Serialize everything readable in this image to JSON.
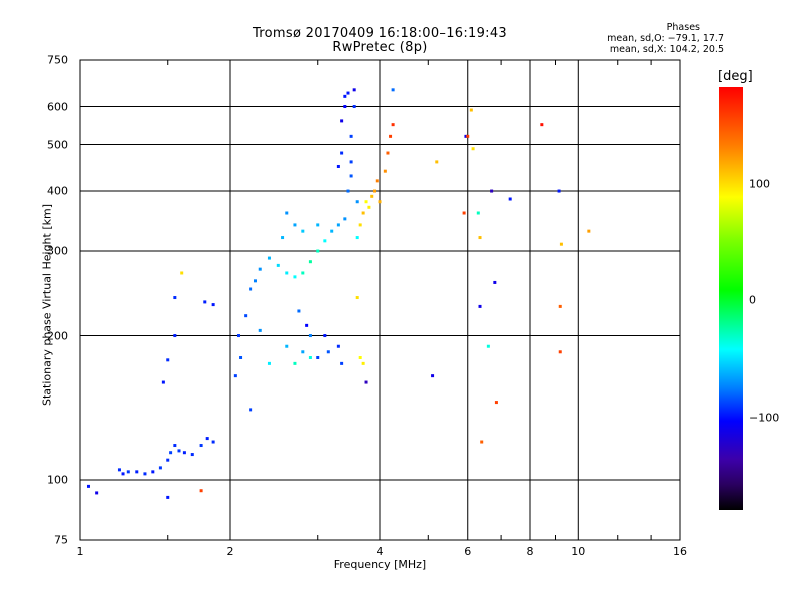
{
  "header": {
    "title_line1": "Tromsø 20170409 16:18:00–16:19:43",
    "title_line2": "RwPretec (8p)",
    "stats_title": "Phases",
    "stats_o": "mean, sd,O: −79.1, 17.7",
    "stats_x": "mean, sd,X: 104.2, 20.5"
  },
  "colorbar": {
    "unit": "[deg]",
    "ticks": [
      "100",
      "0",
      "−100"
    ],
    "range": [
      -180,
      180
    ]
  },
  "chart_data": {
    "type": "scatter",
    "title": "Tromsø 20170409 16:18:00–16:19:43",
    "subtitle": "RwPretec (8p)",
    "xlabel": "Frequency [MHz]",
    "ylabel": "Stationary phase Virtual Height [km]",
    "xscale": "log",
    "yscale": "log",
    "xlim": [
      1,
      16
    ],
    "ylim": [
      75,
      750
    ],
    "xticks": [
      "1",
      "2",
      "4",
      "6",
      "8",
      "10",
      "16"
    ],
    "yticks": [
      "75",
      "100",
      "200",
      "300",
      "400",
      "500",
      "600",
      "750"
    ],
    "grid": true,
    "color_variable": "phase (deg)",
    "series": [
      {
        "values": [
          [
            1.08,
            94,
            -110
          ],
          [
            1.04,
            97,
            -100
          ],
          [
            1.2,
            105,
            -95
          ],
          [
            1.22,
            103,
            -100
          ],
          [
            1.25,
            104,
            -92
          ],
          [
            1.3,
            104,
            -98
          ],
          [
            1.35,
            103,
            -95
          ],
          [
            1.4,
            104,
            -100
          ],
          [
            1.45,
            106,
            -92
          ],
          [
            1.5,
            110,
            -95
          ],
          [
            1.52,
            114,
            -90
          ],
          [
            1.55,
            118,
            -95
          ],
          [
            1.58,
            115,
            -92
          ],
          [
            1.62,
            114,
            -98
          ],
          [
            1.68,
            113,
            -95
          ],
          [
            1.75,
            118,
            -92
          ],
          [
            1.8,
            122,
            -98
          ],
          [
            1.85,
            120,
            -95
          ],
          [
            1.5,
            92,
            -100
          ],
          [
            1.75,
            95,
            160
          ],
          [
            1.47,
            160,
            -100
          ],
          [
            1.5,
            178,
            -95
          ],
          [
            1.55,
            200,
            -98
          ],
          [
            1.55,
            240,
            -95
          ],
          [
            1.6,
            270,
            110
          ],
          [
            1.78,
            235,
            -98
          ],
          [
            1.85,
            232,
            -100
          ],
          [
            2.05,
            165,
            -90
          ],
          [
            2.1,
            180,
            -85
          ],
          [
            2.08,
            200,
            -92
          ],
          [
            2.15,
            220,
            -88
          ],
          [
            2.2,
            140,
            -90
          ],
          [
            2.2,
            250,
            -80
          ],
          [
            2.25,
            260,
            -75
          ],
          [
            2.3,
            275,
            -70
          ],
          [
            2.4,
            290,
            -60
          ],
          [
            2.5,
            280,
            -50
          ],
          [
            2.6,
            270,
            -45
          ],
          [
            2.7,
            265,
            -40
          ],
          [
            2.8,
            270,
            -30
          ],
          [
            2.9,
            285,
            -25
          ],
          [
            3.0,
            300,
            -30
          ],
          [
            3.1,
            315,
            -40
          ],
          [
            3.2,
            330,
            -60
          ],
          [
            3.3,
            340,
            -65
          ],
          [
            3.4,
            350,
            -70
          ],
          [
            2.55,
            320,
            -60
          ],
          [
            2.6,
            360,
            -70
          ],
          [
            2.7,
            340,
            -65
          ],
          [
            2.8,
            330,
            -55
          ],
          [
            3.0,
            340,
            -60
          ],
          [
            2.6,
            190,
            -60
          ],
          [
            2.7,
            175,
            -30
          ],
          [
            2.8,
            185,
            -65
          ],
          [
            2.9,
            200,
            -75
          ],
          [
            3.0,
            180,
            -90
          ],
          [
            3.1,
            200,
            -100
          ],
          [
            3.15,
            185,
            -85
          ],
          [
            2.85,
            210,
            -105
          ],
          [
            2.75,
            225,
            -80
          ],
          [
            3.3,
            190,
            -95
          ],
          [
            3.35,
            175,
            -90
          ],
          [
            2.9,
            180,
            -35
          ],
          [
            2.3,
            205,
            -70
          ],
          [
            2.4,
            175,
            -45
          ],
          [
            3.3,
            450,
            -100
          ],
          [
            3.35,
            480,
            -95
          ],
          [
            3.35,
            560,
            -110
          ],
          [
            3.4,
            600,
            -105
          ],
          [
            3.45,
            640,
            -100
          ],
          [
            3.5,
            520,
            -90
          ],
          [
            3.5,
            430,
            -85
          ],
          [
            3.6,
            380,
            -70
          ],
          [
            3.6,
            320,
            -40
          ],
          [
            3.4,
            630,
            -100
          ],
          [
            3.55,
            650,
            -110
          ],
          [
            3.55,
            600,
            -95
          ],
          [
            3.5,
            460,
            -90
          ],
          [
            3.45,
            400,
            -80
          ],
          [
            3.65,
            340,
            110
          ],
          [
            3.7,
            360,
            120
          ],
          [
            3.75,
            380,
            100
          ],
          [
            3.8,
            370,
            105
          ],
          [
            3.85,
            390,
            120
          ],
          [
            3.9,
            400,
            130
          ],
          [
            3.95,
            420,
            140
          ],
          [
            4.0,
            380,
            125
          ],
          [
            4.1,
            440,
            135
          ],
          [
            4.15,
            480,
            150
          ],
          [
            4.2,
            520,
            160
          ],
          [
            4.25,
            550,
            165
          ],
          [
            3.6,
            240,
            110
          ],
          [
            3.65,
            180,
            100
          ],
          [
            3.7,
            175,
            105
          ],
          [
            3.75,
            160,
            -120
          ],
          [
            4.25,
            650,
            -80
          ],
          [
            5.1,
            165,
            -110
          ],
          [
            5.2,
            460,
            120
          ],
          [
            5.95,
            520,
            -110
          ],
          [
            6.0,
            520,
            160
          ],
          [
            6.1,
            590,
            120
          ],
          [
            6.15,
            490,
            110
          ],
          [
            6.3,
            360,
            -30
          ],
          [
            6.35,
            320,
            120
          ],
          [
            6.35,
            230,
            -110
          ],
          [
            6.4,
            120,
            150
          ],
          [
            6.6,
            190,
            -35
          ],
          [
            6.7,
            400,
            -120
          ],
          [
            6.8,
            258,
            -110
          ],
          [
            6.85,
            145,
            160
          ],
          [
            7.3,
            385,
            -100
          ],
          [
            8.45,
            550,
            175
          ],
          [
            9.15,
            400,
            -100
          ],
          [
            9.2,
            230,
            150
          ],
          [
            9.2,
            185,
            160
          ],
          [
            9.25,
            310,
            120
          ],
          [
            10.5,
            330,
            130
          ],
          [
            5.9,
            360,
            160
          ]
        ]
      }
    ]
  }
}
